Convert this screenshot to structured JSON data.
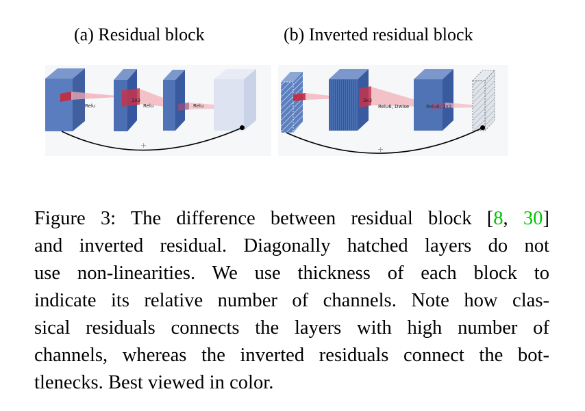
{
  "figure": {
    "panel_a": {
      "title": "(a) Residual block",
      "labels": {
        "relu_1": "Relu",
        "conv_3x3": "3x3",
        "relu_2": "Relu",
        "relu_3": "Relu",
        "skip_plus": "+"
      }
    },
    "panel_b": {
      "title": "(b) Inverted residual block",
      "labels": {
        "conv_3x3": "3x3",
        "relu6_dwise": "Relu6, Dwise",
        "relu6_1x1": "Relu6, 1x1",
        "skip_plus": "+"
      }
    },
    "colors": {
      "block_blue": "#4f75b5",
      "block_blue_dark": "#3a5a9a",
      "pale_block": "#dde3f0",
      "kernel_red": "#cc2030",
      "projection_pink": "#f3a8b3",
      "hatch_gray": "#c9d0dd"
    }
  },
  "caption": {
    "lines": [
      {
        "parts": [
          {
            "text": "Figure 3: The difference between residual block ["
          },
          {
            "text": "8",
            "ref": true
          },
          {
            "text": ", "
          },
          {
            "text": "30",
            "ref": true
          },
          {
            "text": "]"
          }
        ]
      },
      {
        "parts": [
          {
            "text": "and inverted residual. Diagonally hatched layers do not"
          }
        ]
      },
      {
        "parts": [
          {
            "text": "use non-linearities.  We use thickness of each block to"
          }
        ]
      },
      {
        "parts": [
          {
            "text": "indicate its relative number of channels. Note how clas-"
          }
        ]
      },
      {
        "parts": [
          {
            "text": "sical residuals connects the layers with high number of"
          }
        ]
      },
      {
        "parts": [
          {
            "text": "channels, whereas the inverted residuals connect the bot-"
          }
        ]
      },
      {
        "parts": [
          {
            "text": "tlenecks. Best viewed in color."
          }
        ]
      }
    ]
  }
}
